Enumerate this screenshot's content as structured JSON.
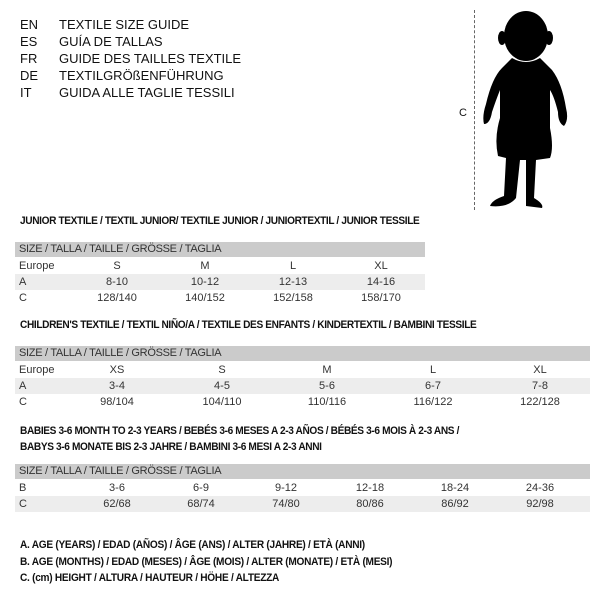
{
  "languages": [
    {
      "code": "EN",
      "title": "TEXTILE SIZE GUIDE"
    },
    {
      "code": "ES",
      "title": "GUÍA DE TALLAS"
    },
    {
      "code": "FR",
      "title": "GUIDE DES TAILLES TEXTILE"
    },
    {
      "code": "DE",
      "title": "TEXTILGRÖßENFÜHRUNG"
    },
    {
      "code": "IT",
      "title": "GUIDA ALLE TAGLIE TESSILI"
    }
  ],
  "figure": {
    "label": "C"
  },
  "junior": {
    "heading": "JUNIOR TEXTILE / TEXTIL JUNIOR/ TEXTILE JUNIOR / JUNIORTEXTIL / JUNIOR TESSILE",
    "header": "SIZE / TALLA / TAILLE / GRÖSSE / TAGLIA",
    "rows": [
      {
        "label": "Europe",
        "values": [
          "S",
          "M",
          "L",
          "XL"
        ]
      },
      {
        "label": "A",
        "values": [
          "8-10",
          "10-12",
          "12-13",
          "14-16"
        ]
      },
      {
        "label": "C",
        "values": [
          "128/140",
          "140/152",
          "152/158",
          "158/170"
        ]
      }
    ]
  },
  "children": {
    "heading": "CHILDREN'S TEXTILE / TEXTIL NIÑO/A / TEXTILE DES ENFANTS / KINDERTEXTIL / BAMBINI TESSILE",
    "header": "SIZE / TALLA / TAILLE / GRÖSSE / TAGLIA",
    "rows": [
      {
        "label": "Europe",
        "values": [
          "XS",
          "S",
          "M",
          "L",
          "XL"
        ]
      },
      {
        "label": "A",
        "values": [
          "3-4",
          "4-5",
          "5-6",
          "6-7",
          "7-8"
        ]
      },
      {
        "label": "C",
        "values": [
          "98/104",
          "104/110",
          "110/116",
          "116/122",
          "122/128"
        ]
      }
    ]
  },
  "babies": {
    "heading_line1": "BABIES 3-6 MONTH TO 2-3 YEARS / BEBÉS 3-6 MESES A 2-3 AÑOS / BÉBÉS 3-6 MOIS À 2-3 ANS /",
    "heading_line2": "BABYS 3-6 MONATE BIS 2-3 JAHRE / BAMBINI 3-6 MESI A 2-3 ANNI",
    "header": "SIZE / TALLA / TAILLE / GRÖSSE / TAGLIA",
    "rows": [
      {
        "label": "B",
        "values": [
          "3-6",
          "6-9",
          "9-12",
          "12-18",
          "18-24",
          "24-36"
        ]
      },
      {
        "label": "C",
        "values": [
          "62/68",
          "68/74",
          "74/80",
          "80/86",
          "86/92",
          "92/98"
        ]
      }
    ]
  },
  "legend": [
    "A. AGE (YEARS) / EDAD (AÑOS) / ÂGE (ANS) / ALTER (JAHRE) / ETÀ (ANNI)",
    "B. AGE (MONTHS) / EDAD (MESES) / ÂGE (MOIS) / ALTER (MONATE) / ETÀ (MESI)",
    "C. (cm) HEIGHT / ALTURA / HAUTEUR / HÖHE / ALTEZZA"
  ]
}
